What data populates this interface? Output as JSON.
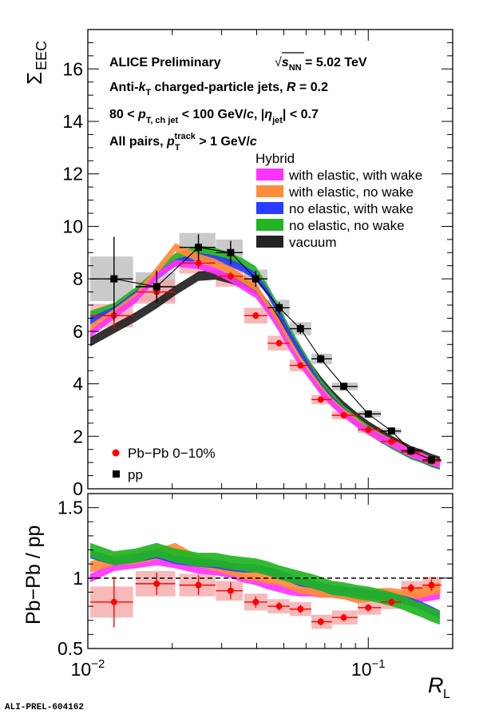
{
  "chart_data": [
    {
      "type": "line",
      "panel": "top",
      "ylabel_main": "Σ",
      "ylabel_sub": "EEC",
      "xscale": "log",
      "xlim": [
        0.01,
        0.2
      ],
      "ylim": [
        0,
        17.5
      ],
      "yticks": [
        0,
        2,
        4,
        6,
        8,
        10,
        12,
        14,
        16
      ],
      "ytick_labels": [
        "0",
        "2",
        "4",
        "6",
        "8",
        "10",
        "12",
        "14",
        "16"
      ],
      "legend_position": "top-right",
      "annotations": {
        "line1_a": "ALICE Preliminary",
        "line1_b_pre": "√",
        "line1_b_s": "s",
        "line1_b_sub": "NN",
        "line1_b_post": " = 5.02 TeV",
        "line2_a": "Anti-",
        "line2_k": "k",
        "line2_ksub": "T",
        "line2_b": " charged-particle jets,  ",
        "line2_R": "R",
        "line2_c": " = 0.2",
        "line3_a": "80 <  ",
        "line3_p": "p",
        "line3_psub": "T, ch jet",
        "line3_b": " < 100 GeV/",
        "line3_c": "c",
        "line3_d": ", |",
        "line3_eta": "η",
        "line3_etasub": "jet",
        "line3_e": "| < 0.7",
        "line4_a": "All pairs,  ",
        "line4_p": "p",
        "line4_psub": "T",
        "line4_psup": "track",
        "line4_b": " > 1 GeV/",
        "line4_c": "c"
      },
      "hybrid_legend": {
        "title": "Hybrid",
        "entries": [
          {
            "label": "with elastic, with wake",
            "color": "#ff33ff"
          },
          {
            "label": "with elastic, no wake",
            "color": "#ff8c3a"
          },
          {
            "label": "no elastic, with wake",
            "color": "#2a3cff"
          },
          {
            "label": "no elastic, no wake",
            "color": "#22b422"
          },
          {
            "label": "vacuum",
            "color": "#222222"
          }
        ]
      },
      "data_legend": [
        {
          "label": "Pb−Pb 0−10%",
          "color": "#ff0000",
          "marker": "circle"
        },
        {
          "label": "pp",
          "color": "#000000",
          "marker": "square"
        }
      ],
      "pp": {
        "x": [
          0.0124,
          0.0176,
          0.0248,
          0.0323,
          0.0397,
          0.0481,
          0.0573,
          0.0677,
          0.0818,
          0.1,
          0.121,
          0.142,
          0.168
        ],
        "y": [
          8.0,
          7.7,
          9.2,
          9.0,
          8.0,
          6.9,
          6.1,
          4.95,
          3.9,
          2.85,
          2.2,
          1.45,
          1.1
        ],
        "xerr_lo": [
          0.0102,
          0.0148,
          0.0212,
          0.0286,
          0.0361,
          0.0438,
          0.0524,
          0.0627,
          0.0742,
          0.0918,
          0.111,
          0.131,
          0.156
        ],
        "xerr_hi": [
          0.0145,
          0.0205,
          0.0285,
          0.0357,
          0.0437,
          0.0524,
          0.0626,
          0.0742,
          0.0916,
          0.111,
          0.131,
          0.156,
          0.182
        ],
        "yerr": [
          1.6,
          0.6,
          0.5,
          0.45,
          0.3,
          0.22,
          0.2,
          0.15,
          0.1,
          0.08,
          0.06,
          0.06,
          0.05
        ],
        "syst": [
          0.85,
          0.55,
          0.55,
          0.5,
          0.35,
          0.3,
          0.25,
          0.2,
          0.15,
          0.12,
          0.1,
          0.08,
          0.07
        ]
      },
      "pbpb": {
        "x": [
          0.0124,
          0.0176,
          0.0248,
          0.0323,
          0.0397,
          0.0481,
          0.0573,
          0.0677,
          0.0818,
          0.1,
          0.121,
          0.142,
          0.168
        ],
        "y": [
          6.6,
          7.5,
          8.6,
          8.1,
          6.6,
          5.55,
          4.7,
          3.4,
          2.8,
          2.25,
          1.8,
          1.4,
          1.05
        ],
        "xerr_lo": [
          0.0102,
          0.0148,
          0.0212,
          0.0286,
          0.0361,
          0.0438,
          0.0524,
          0.0627,
          0.0742,
          0.0918,
          0.111,
          0.131,
          0.156
        ],
        "xerr_hi": [
          0.0145,
          0.0205,
          0.0285,
          0.0357,
          0.0437,
          0.0524,
          0.0626,
          0.0742,
          0.0916,
          0.111,
          0.131,
          0.156,
          0.182
        ],
        "yerr": [
          0.5,
          0.3,
          0.2,
          0.15,
          0.12,
          0.1,
          0.08,
          0.06,
          0.05,
          0.04,
          0.04,
          0.04,
          0.04
        ],
        "syst": [
          0.45,
          0.45,
          0.4,
          0.4,
          0.3,
          0.28,
          0.22,
          0.18,
          0.15,
          0.12,
          0.1,
          0.08,
          0.07
        ]
      },
      "fit_line": {
        "x": [
          0.0124,
          0.0176,
          0.0248,
          0.0323,
          0.0397,
          0.0481,
          0.0573,
          0.0677,
          0.0818,
          0.1,
          0.121,
          0.142,
          0.168
        ],
        "y": [
          8.0,
          7.7,
          9.2,
          9.0,
          8.0,
          6.9,
          6.1,
          4.95,
          3.9,
          2.85,
          2.2,
          1.45,
          1.1
        ]
      },
      "bands_x": [
        0.0102,
        0.0124,
        0.0148,
        0.0176,
        0.0205,
        0.0248,
        0.0285,
        0.0323,
        0.0357,
        0.0397,
        0.0437,
        0.0481,
        0.0524,
        0.0573,
        0.0626,
        0.0677,
        0.0742,
        0.0818,
        0.0916,
        0.1,
        0.111,
        0.121,
        0.131,
        0.142,
        0.156,
        0.168,
        0.18
      ],
      "bands": [
        {
          "name": "vacuum",
          "color": "#222222",
          "halfwidth": 0.18,
          "y": [
            5.6,
            6.1,
            6.55,
            7.05,
            7.55,
            8.1,
            8.15,
            8.0,
            7.85,
            7.6,
            7.0,
            6.4,
            5.8,
            5.2,
            4.6,
            4.1,
            3.6,
            3.15,
            2.7,
            2.4,
            2.1,
            1.85,
            1.65,
            1.45,
            1.3,
            1.15,
            1.05
          ]
        },
        {
          "name": "no elastic, no wake",
          "color": "#22b422",
          "halfwidth": 0.18,
          "y": [
            6.6,
            6.9,
            7.5,
            8.2,
            8.8,
            9.1,
            9.0,
            8.8,
            8.6,
            8.3,
            7.6,
            6.8,
            6.0,
            5.3,
            4.6,
            4.0,
            3.5,
            3.0,
            2.55,
            2.25,
            1.95,
            1.7,
            1.5,
            1.3,
            1.15,
            1.0,
            0.9
          ]
        },
        {
          "name": "no elastic, with wake",
          "color": "#2a3cff",
          "halfwidth": 0.14,
          "y": [
            6.4,
            6.8,
            7.4,
            8.1,
            8.6,
            8.85,
            8.75,
            8.6,
            8.4,
            8.1,
            7.5,
            6.7,
            5.9,
            5.2,
            4.5,
            3.9,
            3.4,
            2.95,
            2.5,
            2.2,
            1.9,
            1.7,
            1.5,
            1.3,
            1.15,
            1.0,
            0.9
          ]
        },
        {
          "name": "with elastic, no wake",
          "color": "#ff8c3a",
          "halfwidth": 0.16,
          "y": [
            6.1,
            6.7,
            7.3,
            8.3,
            9.2,
            8.8,
            8.6,
            8.3,
            8.0,
            7.7,
            7.0,
            6.3,
            5.6,
            4.9,
            4.3,
            3.8,
            3.3,
            2.9,
            2.5,
            2.2,
            1.95,
            1.75,
            1.55,
            1.35,
            1.2,
            1.05,
            0.95
          ]
        },
        {
          "name": "with elastic, with wake",
          "color": "#ff33ff",
          "halfwidth": 0.13,
          "y": [
            5.9,
            6.6,
            7.2,
            8.1,
            8.6,
            8.5,
            8.3,
            8.0,
            7.7,
            7.4,
            6.8,
            6.1,
            5.4,
            4.75,
            4.2,
            3.7,
            3.25,
            2.85,
            2.45,
            2.2,
            1.95,
            1.75,
            1.55,
            1.35,
            1.2,
            1.05,
            0.95
          ]
        }
      ]
    },
    {
      "type": "line",
      "panel": "bottom",
      "xlabel_main": "R",
      "xlabel_sub": "L",
      "ylabel": "Pb−Pb / pp",
      "xscale": "log",
      "xlim": [
        0.01,
        0.2
      ],
      "ylim": [
        0.5,
        1.6
      ],
      "yticks": [
        0.5,
        1,
        1.5
      ],
      "ytick_labels": [
        "0.5",
        "1",
        "1.5"
      ],
      "xtick_labels": [
        {
          "base": "10",
          "exp": "−2",
          "x": 0.01
        },
        {
          "base": "10",
          "exp": "−1",
          "x": 0.1
        }
      ],
      "reference_line": 1,
      "ratio": {
        "x": [
          0.0124,
          0.0176,
          0.0248,
          0.0323,
          0.0397,
          0.0481,
          0.0573,
          0.0677,
          0.0818,
          0.1,
          0.121,
          0.142,
          0.168
        ],
        "y": [
          0.83,
          0.96,
          0.95,
          0.91,
          0.83,
          0.8,
          0.78,
          0.69,
          0.72,
          0.79,
          0.83,
          0.93,
          0.95
        ],
        "xerr_lo": [
          0.0102,
          0.0148,
          0.0212,
          0.0286,
          0.0361,
          0.0438,
          0.0524,
          0.0627,
          0.0742,
          0.0918,
          0.111,
          0.131,
          0.156
        ],
        "xerr_hi": [
          0.0145,
          0.0205,
          0.0285,
          0.0357,
          0.0437,
          0.0524,
          0.0626,
          0.0742,
          0.0916,
          0.111,
          0.131,
          0.156,
          0.182
        ],
        "yerr": [
          0.18,
          0.08,
          0.07,
          0.06,
          0.04,
          0.03,
          0.03,
          0.025,
          0.025,
          0.025,
          0.025,
          0.03,
          0.04
        ],
        "syst": [
          0.11,
          0.09,
          0.08,
          0.07,
          0.06,
          0.05,
          0.05,
          0.05,
          0.05,
          0.05,
          0.05,
          0.05,
          0.06
        ]
      },
      "bands": [
        {
          "name": "with elastic, with wake",
          "color": "#ff33ff",
          "halfwidth": 0.03,
          "y": [
            1.0,
            1.08,
            1.1,
            1.12,
            1.1,
            1.06,
            1.05,
            1.03,
            1.0,
            0.98,
            0.95,
            0.93,
            0.91,
            0.9,
            0.9,
            0.89,
            0.89,
            0.88,
            0.86,
            0.87,
            0.88,
            0.88,
            0.87,
            0.87,
            0.86,
            0.87,
            0.88
          ]
        },
        {
          "name": "with elastic, no wake",
          "color": "#ff8c3a",
          "halfwidth": 0.04,
          "y": [
            1.08,
            1.13,
            1.14,
            1.17,
            1.21,
            1.12,
            1.09,
            1.06,
            1.03,
            1.02,
            1.0,
            0.99,
            0.96,
            0.93,
            0.92,
            0.9,
            0.9,
            0.89,
            0.86,
            0.87,
            0.89,
            0.89,
            0.88,
            0.89,
            0.9,
            0.92,
            0.93
          ]
        },
        {
          "name": "no elastic, with wake",
          "color": "#2a3cff",
          "halfwidth": 0.03,
          "y": [
            1.17,
            1.12,
            1.14,
            1.17,
            1.13,
            1.11,
            1.1,
            1.08,
            1.07,
            1.07,
            1.05,
            1.03,
            1.0,
            0.97,
            0.96,
            0.94,
            0.92,
            0.91,
            0.9,
            0.89,
            0.87,
            0.86,
            0.85,
            0.83,
            0.8,
            0.77,
            0.74
          ]
        },
        {
          "name": "no elastic, no wake",
          "color": "#22b422",
          "halfwidth": 0.05,
          "y": [
            1.2,
            1.14,
            1.16,
            1.2,
            1.16,
            1.13,
            1.13,
            1.11,
            1.1,
            1.09,
            1.07,
            1.04,
            1.02,
            1.0,
            0.98,
            0.96,
            0.93,
            0.92,
            0.9,
            0.89,
            0.87,
            0.85,
            0.83,
            0.8,
            0.77,
            0.74,
            0.72
          ]
        }
      ]
    }
  ],
  "footer_tag": "ALI-PREL-604162",
  "colors": {
    "pp": "#000000",
    "pbpb": "#ff0000",
    "pp_syst": "#bdbdbd",
    "pbpb_syst": "#f4a3a3"
  }
}
